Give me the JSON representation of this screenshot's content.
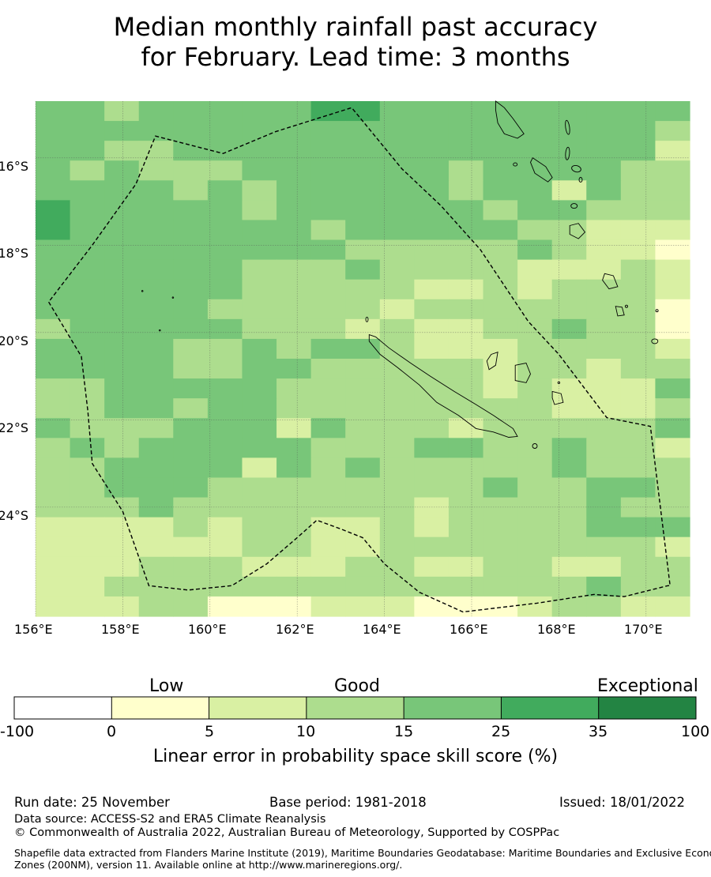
{
  "title": {
    "line1": "Median monthly rainfall past accuracy",
    "line2": "for February. Lead time: 3 months"
  },
  "map": {
    "lon_labels": [
      "156°E",
      "158°E",
      "160°E",
      "162°E",
      "164°E",
      "166°E",
      "168°E",
      "170°E"
    ],
    "lat_labels": [
      "16°S",
      "18°S",
      "20°S",
      "22°S",
      "24°S"
    ],
    "lon_range": [
      156,
      171
    ],
    "lat_range": [
      -14.7,
      -26.5
    ],
    "gridlines": true,
    "boundary_style": "dashed",
    "boundary": [
      [
        156.3,
        -19.3
      ],
      [
        157.05,
        -20.55
      ],
      [
        157.2,
        -21.8
      ],
      [
        157.3,
        -23.0
      ],
      [
        158.0,
        -24.1
      ],
      [
        158.6,
        -25.8
      ],
      [
        159.5,
        -25.9
      ],
      [
        160.5,
        -25.8
      ],
      [
        161.3,
        -25.3
      ],
      [
        162.0,
        -24.7
      ],
      [
        162.45,
        -24.3
      ],
      [
        163.0,
        -24.5
      ],
      [
        163.5,
        -24.7
      ],
      [
        164.0,
        -25.3
      ],
      [
        164.8,
        -25.95
      ],
      [
        165.8,
        -26.4
      ],
      [
        167.5,
        -26.2
      ],
      [
        168.8,
        -26.0
      ],
      [
        169.5,
        -26.05
      ],
      [
        170.5,
        -25.8
      ],
      [
        170.55,
        -25.8
      ],
      [
        170.1,
        -22.15
      ],
      [
        169.1,
        -21.95
      ],
      [
        168.0,
        -20.5
      ],
      [
        167.3,
        -19.75
      ],
      [
        166.2,
        -18.1
      ],
      [
        165.3,
        -17.1
      ],
      [
        164.4,
        -16.25
      ],
      [
        163.25,
        -14.85
      ],
      [
        161.5,
        -15.4
      ],
      [
        160.3,
        -15.9
      ],
      [
        158.75,
        -15.5
      ],
      [
        158.3,
        -16.6
      ],
      [
        157.3,
        -18.0
      ],
      [
        156.3,
        -19.3
      ]
    ],
    "grid_rows": [
      "4434444455444444444",
      "4444444444444444443",
      "4433444444444444442",
      "4343334444443444433",
      "4444343444443442433",
      "5444443444444344333",
      "5444444434444433222",
      "4444444443333343221",
      "4444443334333322232",
      "4444443333322323332",
      "4444433333233333331",
      "3444443332322334331",
      "4444334344322233332",
      "4444334433333233233",
      "3344444333333232224",
      "3344344333333332223",
      "4333444243332333334",
      "3434444433344334332",
      "3344442434333334333",
      "3344433333333433443",
      "3334333333323333433",
      "2222323322323333444",
      "2222223322333333332",
      "2223332223322332233",
      "2233333333333333433",
      "2223311122211123322"
    ],
    "islands": "Vanuatu, New Caledonia, Loyalty Islands, Fiji region outlines"
  },
  "colorbar": {
    "categories": [
      {
        "label": "Low",
        "position": "left"
      },
      {
        "label": "Good",
        "position": "center"
      },
      {
        "label": "Exceptional",
        "position": "right"
      }
    ],
    "ticks": [
      "-100",
      "0",
      "5",
      "10",
      "15",
      "25",
      "35",
      "100"
    ],
    "colors": [
      "#ffffff",
      "#ffffcc",
      "#d9f0a3",
      "#addd8e",
      "#78c679",
      "#41ab5d",
      "#238443"
    ],
    "title": "Linear error in probability space skill score (%)"
  },
  "footer": {
    "run_date": "Run date: 25 November",
    "base_period": "Base period: 1981-2018",
    "issued": "Issued: 18/01/2022",
    "data_source": "Data source: ACCESS-S2 and ERA5 Climate Reanalysis",
    "copyright": "© Commonwealth of Australia 2022, Australian Bureau of Meteorology, Supported by COSPPac",
    "shapefile_line1": "Shapefile data extracted from Flanders Marine Institute (2019), Maritime Boundaries Geodatabase: Maritime Boundaries and Exclusive Economic",
    "shapefile_line2": "Zones (200NM), version 11. Available online at http://www.marineregions.org/."
  }
}
